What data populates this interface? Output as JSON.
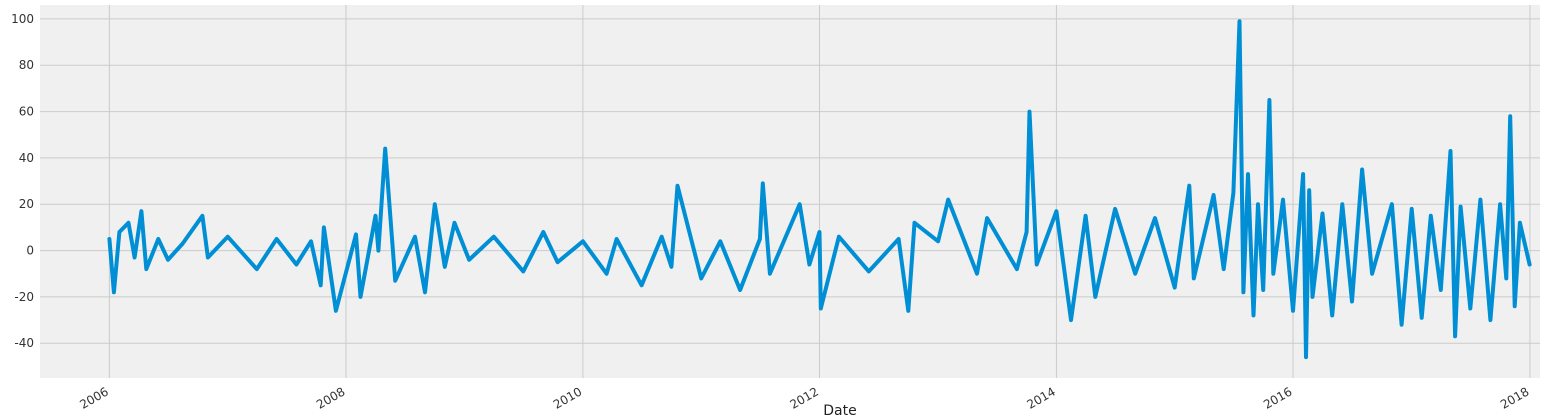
{
  "chart_data": {
    "type": "line",
    "xlabel": "Date",
    "ylabel": "",
    "title": "",
    "grid": true,
    "legend": "none",
    "colors": {
      "line": "#008fd5",
      "plot_background": "#f0f0f0",
      "grid": "#cbcbcb"
    },
    "xlim": [
      "2005-06-01",
      "2018-02-01"
    ],
    "ylim": [
      -55,
      106
    ],
    "x_ticks": [
      "2006",
      "2008",
      "2010",
      "2012",
      "2014",
      "2016",
      "2018"
    ],
    "y_ticks": [
      -40,
      -20,
      0,
      20,
      40,
      60,
      80,
      100
    ],
    "series": [
      {
        "x": [
          "2006-01-01",
          "2006-01-15",
          "2006-02-01",
          "2006-03-01",
          "2006-03-20",
          "2006-04-10",
          "2006-04-25",
          "2006-06-01",
          "2006-07-01",
          "2006-08-15",
          "2006-10-15",
          "2006-11-01",
          "2007-01-01",
          "2007-04-01",
          "2007-06-01",
          "2007-08-01",
          "2007-09-15",
          "2007-10-15",
          "2007-10-25",
          "2007-12-01",
          "2008-02-01",
          "2008-02-15",
          "2008-04-01",
          "2008-04-10",
          "2008-05-01",
          "2008-06-01",
          "2008-08-01",
          "2008-09-01",
          "2008-10-01",
          "2008-11-01",
          "2008-12-01",
          "2009-01-15",
          "2009-04-01",
          "2009-07-01",
          "2009-09-01",
          "2009-10-15",
          "2010-01-01",
          "2010-03-15",
          "2010-04-15",
          "2010-07-01",
          "2010-09-01",
          "2010-10-01",
          "2010-10-20",
          "2011-01-01",
          "2011-03-01",
          "2011-05-01",
          "2011-07-01",
          "2011-07-10",
          "2011-08-01",
          "2011-11-01",
          "2011-12-01",
          "2012-01-01",
          "2012-01-05",
          "2012-03-01",
          "2012-06-01",
          "2012-09-01",
          "2012-10-01",
          "2012-10-20",
          "2013-01-01",
          "2013-02-01",
          "2013-05-01",
          "2013-06-01",
          "2013-09-01",
          "2013-10-01",
          "2013-10-10",
          "2013-11-01",
          "2014-01-01",
          "2014-02-15",
          "2014-04-01",
          "2014-05-01",
          "2014-07-01",
          "2014-09-01",
          "2014-11-01",
          "2015-01-01",
          "2015-02-15",
          "2015-03-01",
          "2015-05-01",
          "2015-06-01",
          "2015-07-01",
          "2015-07-20",
          "2015-08-01",
          "2015-08-15",
          "2015-09-01",
          "2015-09-15",
          "2015-10-01",
          "2015-10-20",
          "2015-11-01",
          "2015-12-01",
          "2016-01-01",
          "2016-02-01",
          "2016-02-10",
          "2016-02-20",
          "2016-03-01",
          "2016-04-01",
          "2016-05-01",
          "2016-06-01",
          "2016-07-01",
          "2016-08-01",
          "2016-09-01",
          "2016-11-01",
          "2016-12-01",
          "2017-01-01",
          "2017-02-01",
          "2017-03-01",
          "2017-04-01",
          "2017-05-01",
          "2017-05-15",
          "2017-06-01",
          "2017-07-01",
          "2017-08-01",
          "2017-09-01",
          "2017-10-01",
          "2017-10-20",
          "2017-11-01",
          "2017-11-15",
          "2017-12-01",
          "2017-12-31"
        ],
        "values": [
          5,
          -18,
          8,
          12,
          -3,
          17,
          -8,
          5,
          -4,
          3,
          15,
          -3,
          6,
          -8,
          5,
          -6,
          4,
          -15,
          10,
          -26,
          7,
          -20,
          15,
          0,
          44,
          -13,
          6,
          -18,
          20,
          -7,
          12,
          -4,
          6,
          -9,
          8,
          -5,
          4,
          -10,
          5,
          -15,
          6,
          -7,
          28,
          -12,
          4,
          -17,
          5,
          29,
          -10,
          20,
          -6,
          8,
          -25,
          6,
          -9,
          5,
          -26,
          12,
          4,
          22,
          -10,
          14,
          -8,
          8,
          60,
          -6,
          17,
          -30,
          15,
          -20,
          18,
          -10,
          14,
          -16,
          28,
          -12,
          24,
          -8,
          25,
          99,
          -18,
          33,
          -28,
          20,
          -17,
          65,
          -10,
          22,
          -26,
          33,
          -46,
          26,
          -20,
          16,
          -28,
          20,
          -22,
          35,
          -10,
          20,
          -32,
          18,
          -29,
          15,
          -17,
          43,
          -37,
          19,
          -25,
          22,
          -30,
          20,
          -12,
          58,
          -24,
          12,
          -6
        ]
      }
    ]
  }
}
